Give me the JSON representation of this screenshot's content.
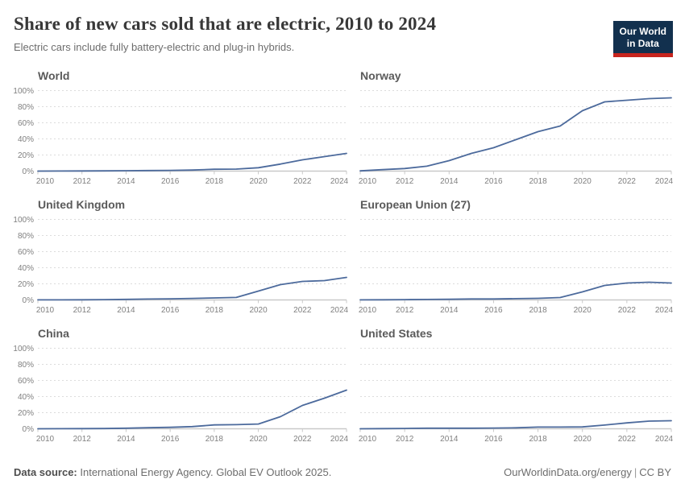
{
  "header": {
    "title": "Share of new cars sold that are electric, 2010 to 2024",
    "subtitle": "Electric cars include fully battery-electric and plug-in hybrids.",
    "logo_line1": "Our World",
    "logo_line2": "in Data"
  },
  "footer": {
    "source_label": "Data source:",
    "source_text": "International Energy Agency. Global EV Outlook 2025.",
    "url": "OurWorldinData.org/energy",
    "separator": "|",
    "license": "CC BY"
  },
  "colors": {
    "line": "#4c6a9c",
    "grid": "#dcdcdc",
    "axis": "#c9c9c9",
    "tick_label": "#7f7f7f",
    "panel_title": "#5a5a5a",
    "logo_bg": "#12304e",
    "logo_red": "#c7241e"
  },
  "chart_data": {
    "type": "line",
    "title": "Share of new cars sold that are electric, 2010 to 2024",
    "unit": "%",
    "grid": true,
    "x": [
      2010,
      2011,
      2012,
      2013,
      2014,
      2015,
      2016,
      2017,
      2018,
      2019,
      2020,
      2021,
      2022,
      2023,
      2024
    ],
    "x_ticks": [
      2010,
      2012,
      2014,
      2016,
      2018,
      2020,
      2022,
      2024
    ],
    "y_ticks": [
      0,
      20,
      40,
      60,
      80,
      100
    ],
    "ylim": [
      0,
      100
    ],
    "xlabel": "",
    "ylabel": "",
    "series": [
      {
        "name": "World",
        "values": [
          0.0,
          0.1,
          0.2,
          0.3,
          0.5,
          0.7,
          0.9,
          1.3,
          2.3,
          2.5,
          4.2,
          8.7,
          14,
          18,
          22
        ]
      },
      {
        "name": "Norway",
        "values": [
          0.3,
          1.8,
          3.2,
          6.1,
          13,
          22,
          29,
          39,
          49,
          56,
          75,
          86,
          88,
          90,
          91
        ]
      },
      {
        "name": "United Kingdom",
        "values": [
          0.1,
          0.1,
          0.2,
          0.4,
          0.7,
          1.1,
          1.4,
          1.9,
          2.5,
          3.1,
          11,
          19,
          23,
          24,
          28
        ]
      },
      {
        "name": "European Union (27)",
        "values": [
          0.1,
          0.2,
          0.4,
          0.6,
          0.8,
          1.2,
          1.2,
          1.6,
          2.0,
          3.0,
          10,
          18,
          21,
          22,
          21
        ]
      },
      {
        "name": "China",
        "values": [
          0.0,
          0.1,
          0.2,
          0.3,
          0.7,
          1.3,
          1.8,
          2.7,
          4.8,
          5.1,
          5.9,
          15,
          29,
          38,
          48
        ]
      },
      {
        "name": "United States",
        "values": [
          0.0,
          0.2,
          0.4,
          0.7,
          0.7,
          0.7,
          0.9,
          1.2,
          2.1,
          2.1,
          2.3,
          4.6,
          7.3,
          9.5,
          10
        ]
      }
    ]
  }
}
